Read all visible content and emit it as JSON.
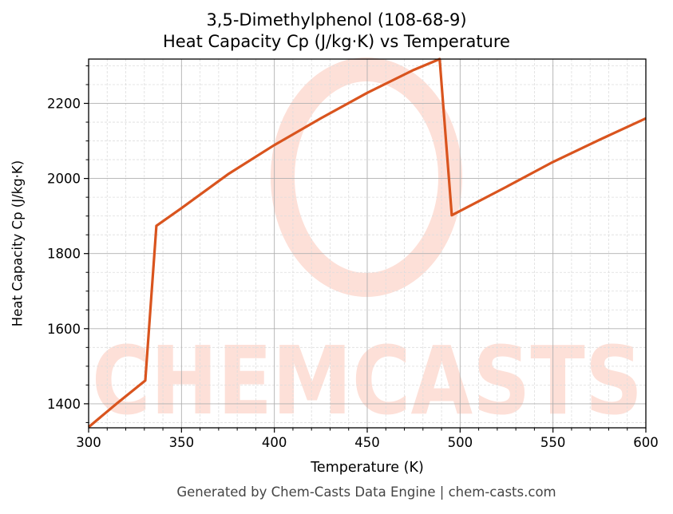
{
  "title": {
    "line1": "3,5-Dimethylphenol (108-68-9)",
    "line2": "Heat Capacity Cp (J/kg·K) vs Temperature"
  },
  "axes": {
    "xlabel": "Temperature (K)",
    "ylabel": "Heat Capacity Cp (J/kg·K)"
  },
  "footer": "Generated by Chem-Casts Data Engine | chem-casts.com",
  "watermark": "CHEMCASTS",
  "colors": {
    "line": "#d9541e",
    "watermark": "#fde0d8",
    "grid_major": "#b0b0b0",
    "grid_minor": "#dddddd"
  },
  "chart_data": {
    "type": "line",
    "title": "3,5-Dimethylphenol (108-68-9) Heat Capacity Cp (J/kg·K) vs Temperature",
    "xlabel": "Temperature (K)",
    "ylabel": "Heat Capacity Cp (J/kg·K)",
    "xlim": [
      300,
      600
    ],
    "ylim": [
      1336,
      2318
    ],
    "xticks": [
      300,
      350,
      400,
      450,
      500,
      550,
      600
    ],
    "yticks": [
      1400,
      1600,
      1800,
      2000,
      2200
    ],
    "grid": true,
    "legend": null,
    "series": [
      {
        "name": "Cp",
        "x": [
          300,
          315,
          330.5,
          336.5,
          350,
          375,
          400,
          425,
          450,
          475,
          489,
          495.5,
          525,
          550,
          575,
          600
        ],
        "y": [
          1338,
          1400,
          1462,
          1874,
          1921,
          2011,
          2089,
          2160,
          2228,
          2289,
          2318,
          1902,
          1978,
          2044,
          2103,
          2160
        ]
      }
    ]
  }
}
